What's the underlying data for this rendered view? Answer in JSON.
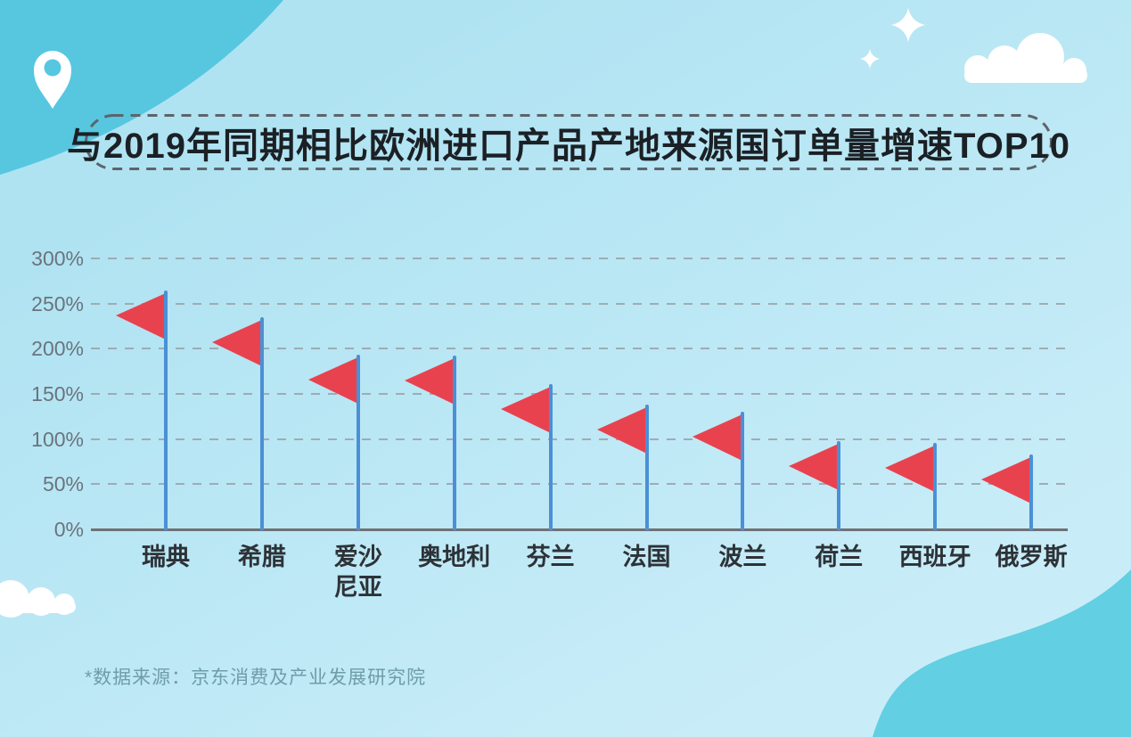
{
  "header": {
    "title": "与2019年同期相比欧洲进口产品产地来源国订单量增速TOP10"
  },
  "footer": {
    "source_note": "*数据来源：京东消费及产业发展研究院"
  },
  "decorations": [
    "location-pin-icon",
    "sparkle-icon-large",
    "sparkle-icon-small",
    "cloud-icon-top-right",
    "cloud-icon-bottom-left"
  ],
  "colors": {
    "background_light_top": "#b0e3f2",
    "background_light_bottom": "#c9edf8",
    "background_dark_corner_topleft": "#57c7e0",
    "background_dark_corner_bottomright": "#62cfe2",
    "flag_red": "#e9424f",
    "pole_blue": "#4b90d6",
    "gridline_gray": "#99a1a8",
    "axis_gray": "#6f7275",
    "ytick_gray": "#6b737d",
    "category_label_dark": "#2d3237",
    "title_text": "#1b2025",
    "dashed_border_gray": "#5d646b",
    "footnote_teal": "#6e9da8",
    "decoration_white": "#ffffff"
  },
  "chart_data": {
    "type": "bar",
    "variant": "flag-pole-markers",
    "title": "与2019年同期相比欧洲进口产品产地来源国订单量增速TOP10",
    "categories": [
      "瑞典",
      "希腊",
      "爱沙\n尼亚",
      "奥地利",
      "芬兰",
      "法国",
      "波兰",
      "荷兰",
      "西班牙",
      "俄罗斯"
    ],
    "values": [
      264,
      235,
      193,
      192,
      161,
      138,
      130,
      98,
      96,
      83
    ],
    "unit": "%",
    "xlabel": "",
    "ylabel": "",
    "ylim": [
      0,
      300
    ],
    "ytick_values": [
      0,
      50,
      100,
      150,
      200,
      250,
      300
    ],
    "ytick_labels": [
      "0%",
      "50%",
      "100%",
      "150%",
      "200%",
      "250%",
      "300%"
    ],
    "grid": "horizontal dashed",
    "legend": "none",
    "source_note": "*数据来源：京东消费及产业发展研究院"
  }
}
